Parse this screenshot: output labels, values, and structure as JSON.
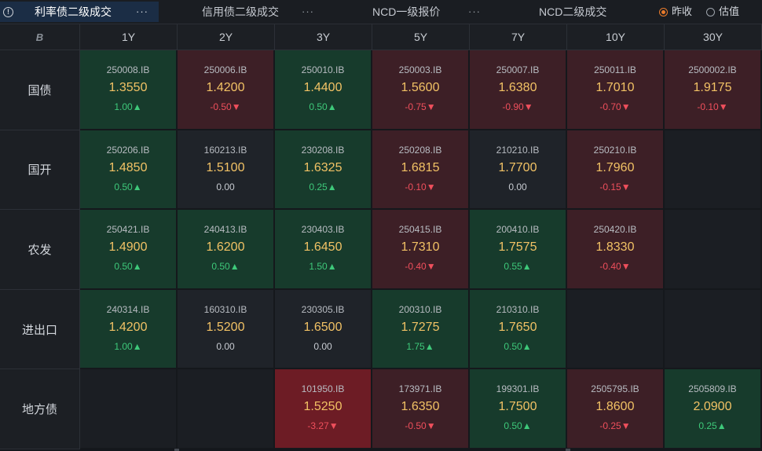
{
  "tabs": [
    {
      "label": "利率债二级成交",
      "more": "···"
    },
    {
      "label": "信用债二级成交",
      "more": "···"
    },
    {
      "label": "NCD一级报价",
      "more": "···"
    },
    {
      "label": "NCD二级成交",
      "more": ""
    }
  ],
  "info_icon": "!",
  "radios": [
    {
      "label": "昨收",
      "selected": true
    },
    {
      "label": "估值",
      "selected": false
    }
  ],
  "columns": [
    "1Y",
    "2Y",
    "3Y",
    "5Y",
    "7Y",
    "10Y",
    "30Y"
  ],
  "corner_label": "B",
  "rows": [
    {
      "label": "国债",
      "cells": [
        {
          "code": "250008.IB",
          "yield": "1.3550",
          "change": "1.00▲",
          "dir": "up",
          "tone": "green"
        },
        {
          "code": "250006.IB",
          "yield": "1.4200",
          "change": "-0.50▼",
          "dir": "down",
          "tone": "red"
        },
        {
          "code": "250010.IB",
          "yield": "1.4400",
          "change": "0.50▲",
          "dir": "up",
          "tone": "green"
        },
        {
          "code": "250003.IB",
          "yield": "1.5600",
          "change": "-0.75▼",
          "dir": "down",
          "tone": "red"
        },
        {
          "code": "250007.IB",
          "yield": "1.6380",
          "change": "-0.90▼",
          "dir": "down",
          "tone": "red"
        },
        {
          "code": "250011.IB",
          "yield": "1.7010",
          "change": "-0.70▼",
          "dir": "down",
          "tone": "red"
        },
        {
          "code": "2500002.IB",
          "yield": "1.9175",
          "change": "-0.10▼",
          "dir": "down",
          "tone": "red"
        }
      ]
    },
    {
      "label": "国开",
      "cells": [
        {
          "code": "250206.IB",
          "yield": "1.4850",
          "change": "0.50▲",
          "dir": "up",
          "tone": "green"
        },
        {
          "code": "160213.IB",
          "yield": "1.5100",
          "change": "0.00",
          "dir": "flat",
          "tone": "neutral"
        },
        {
          "code": "230208.IB",
          "yield": "1.6325",
          "change": "0.25▲",
          "dir": "up",
          "tone": "green"
        },
        {
          "code": "250208.IB",
          "yield": "1.6815",
          "change": "-0.10▼",
          "dir": "down",
          "tone": "red"
        },
        {
          "code": "210210.IB",
          "yield": "1.7700",
          "change": "0.00",
          "dir": "flat",
          "tone": "neutral"
        },
        {
          "code": "250210.IB",
          "yield": "1.7960",
          "change": "-0.15▼",
          "dir": "down",
          "tone": "red"
        },
        null
      ]
    },
    {
      "label": "农发",
      "cells": [
        {
          "code": "250421.IB",
          "yield": "1.4900",
          "change": "0.50▲",
          "dir": "up",
          "tone": "green"
        },
        {
          "code": "240413.IB",
          "yield": "1.6200",
          "change": "0.50▲",
          "dir": "up",
          "tone": "green"
        },
        {
          "code": "230403.IB",
          "yield": "1.6450",
          "change": "1.50▲",
          "dir": "up",
          "tone": "green"
        },
        {
          "code": "250415.IB",
          "yield": "1.7310",
          "change": "-0.40▼",
          "dir": "down",
          "tone": "red"
        },
        {
          "code": "200410.IB",
          "yield": "1.7575",
          "change": "0.55▲",
          "dir": "up",
          "tone": "green"
        },
        {
          "code": "250420.IB",
          "yield": "1.8330",
          "change": "-0.40▼",
          "dir": "down",
          "tone": "red"
        },
        null
      ]
    },
    {
      "label": "进出口",
      "cells": [
        {
          "code": "240314.IB",
          "yield": "1.4200",
          "change": "1.00▲",
          "dir": "up",
          "tone": "green"
        },
        {
          "code": "160310.IB",
          "yield": "1.5200",
          "change": "0.00",
          "dir": "flat",
          "tone": "neutral"
        },
        {
          "code": "230305.IB",
          "yield": "1.6500",
          "change": "0.00",
          "dir": "flat",
          "tone": "neutral"
        },
        {
          "code": "200310.IB",
          "yield": "1.7275",
          "change": "1.75▲",
          "dir": "up",
          "tone": "green"
        },
        {
          "code": "210310.IB",
          "yield": "1.7650",
          "change": "0.50▲",
          "dir": "up",
          "tone": "green"
        },
        null,
        null
      ]
    },
    {
      "label": "地方债",
      "cells": [
        null,
        null,
        {
          "code": "101950.IB",
          "yield": "1.5250",
          "change": "-3.27▼",
          "dir": "down",
          "tone": "red-strong"
        },
        {
          "code": "173971.IB",
          "yield": "1.6350",
          "change": "-0.50▼",
          "dir": "down",
          "tone": "red"
        },
        {
          "code": "199301.IB",
          "yield": "1.7500",
          "change": "0.50▲",
          "dir": "up",
          "tone": "green"
        },
        {
          "code": "2505795.IB",
          "yield": "1.8600",
          "change": "-0.25▼",
          "dir": "down",
          "tone": "red"
        },
        {
          "code": "2505809.IB",
          "yield": "2.0900",
          "change": "0.25▲",
          "dir": "up",
          "tone": "green"
        }
      ]
    }
  ],
  "colors": {
    "up": "#3ec97a",
    "down": "#ef4f5c",
    "yield": "#f2c265",
    "accent": "#e87b2c",
    "active_tab": "#1b2d45"
  }
}
